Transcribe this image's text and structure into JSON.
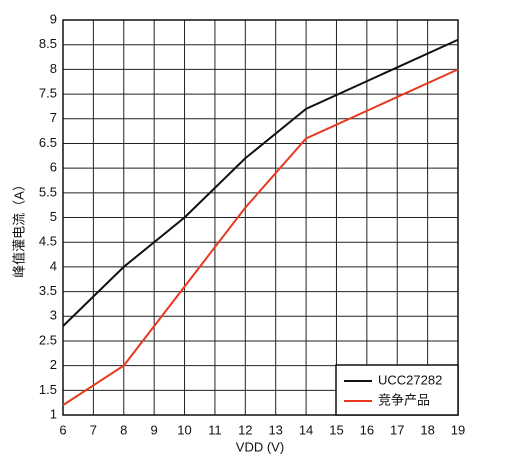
{
  "chart_data": {
    "type": "line",
    "x_label": "VDD (V)",
    "y_label": "峰值灌电流（A）",
    "xlim": [
      6,
      19
    ],
    "xticks": [
      6,
      7,
      8,
      9,
      10,
      11,
      12,
      13,
      14,
      15,
      16,
      17,
      18,
      19
    ],
    "ylim": [
      1,
      9
    ],
    "yticks": [
      1,
      1.5,
      2,
      2.5,
      3,
      3.5,
      4,
      4.5,
      5,
      5.5,
      6,
      6.5,
      7,
      7.5,
      8,
      8.5,
      9
    ],
    "grid": true,
    "legend": "lower right",
    "series": [
      {
        "name": "UCC27282",
        "color": "#111111",
        "x": [
          6,
          8,
          10,
          12,
          14,
          19
        ],
        "values": [
          2.8,
          4.0,
          5.0,
          6.2,
          7.2,
          8.6
        ]
      },
      {
        "name": "竞争产品",
        "color": "#e8391f",
        "x": [
          6,
          8,
          10,
          12,
          14,
          19
        ],
        "values": [
          1.2,
          2.0,
          3.6,
          5.2,
          6.6,
          8.0
        ]
      }
    ]
  }
}
